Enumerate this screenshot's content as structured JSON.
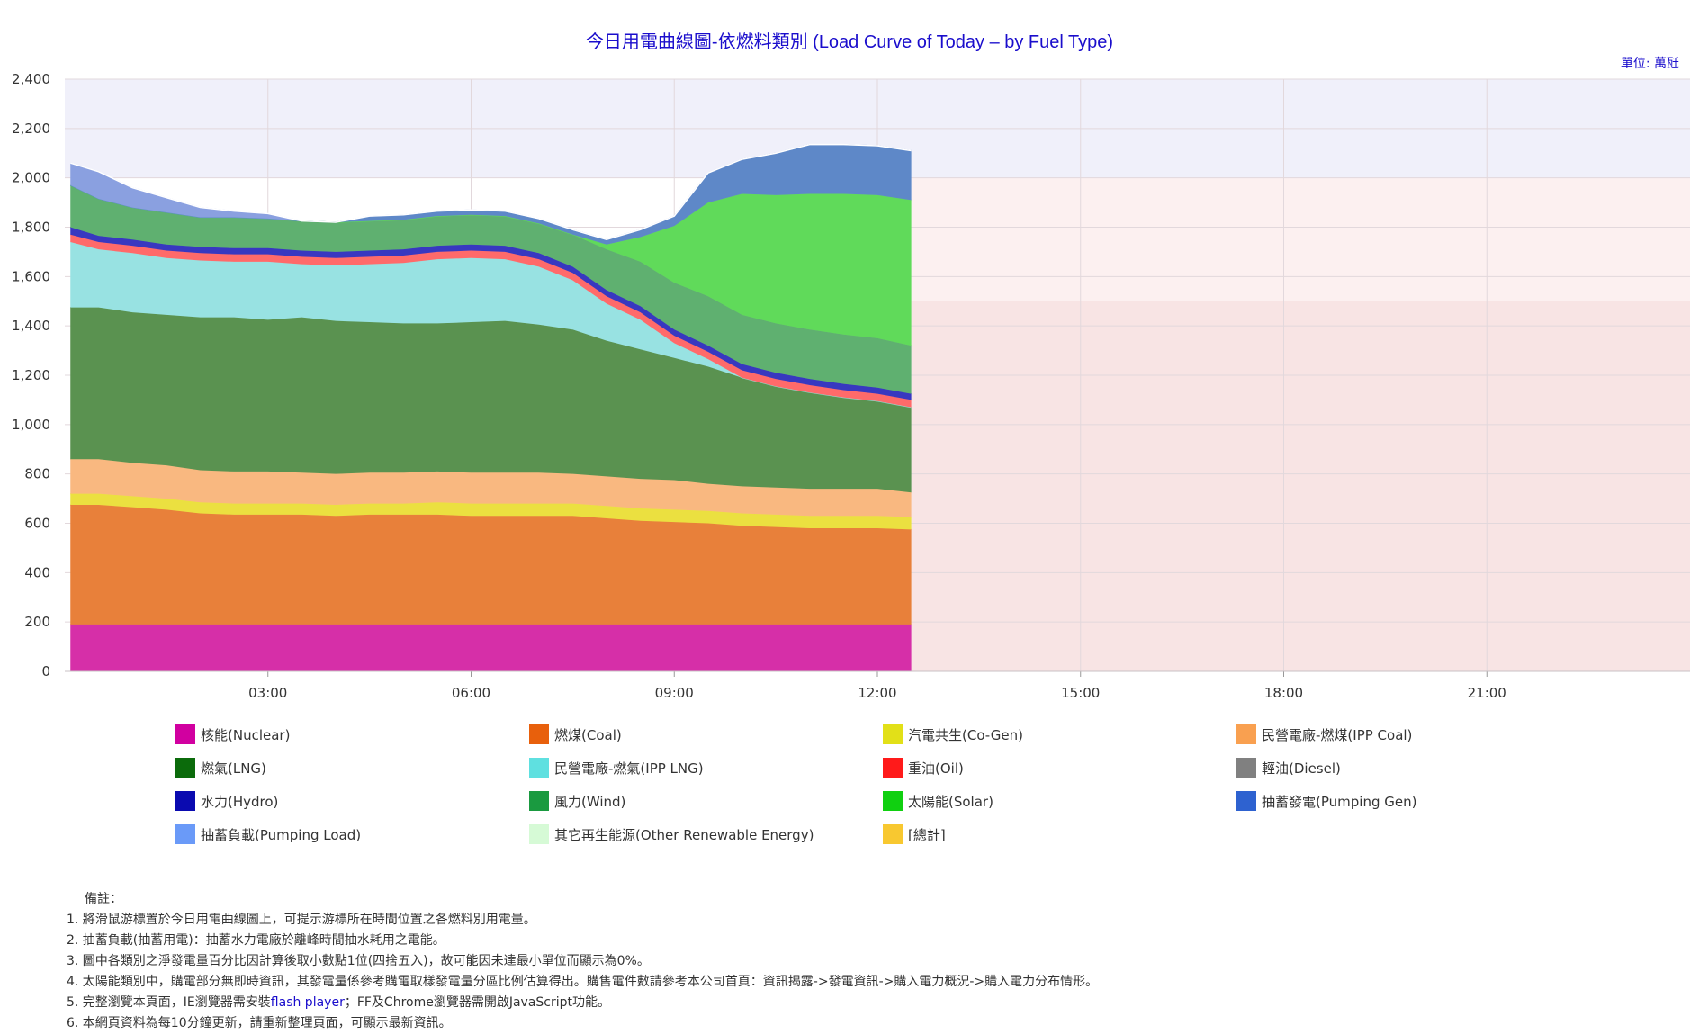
{
  "title": "今日用電曲線圖-依燃料類別 (Load Curve of Today – by Fuel Type)",
  "unit": "單位: 萬瓩",
  "legend": [
    {
      "label": "核能(Nuclear)",
      "color": "#d100a0"
    },
    {
      "label": "燃煤(Coal)",
      "color": "#e8600c"
    },
    {
      "label": "汽電共生(Co-Gen)",
      "color": "#e2e018"
    },
    {
      "label": "民營電廠-燃煤(IPP Coal)",
      "color": "#f9a050"
    },
    {
      "label": "燃氣(LNG)",
      "color": "#0b6b0b"
    },
    {
      "label": "民營電廠-燃氣(IPP LNG)",
      "color": "#5fe0e0"
    },
    {
      "label": "重油(Oil)",
      "color": "#ff1a1a"
    },
    {
      "label": "輕油(Diesel)",
      "color": "#808080"
    },
    {
      "label": "水力(Hydro)",
      "color": "#0a0ab0"
    },
    {
      "label": "風力(Wind)",
      "color": "#1a9a40"
    },
    {
      "label": "太陽能(Solar)",
      "color": "#10d010"
    },
    {
      "label": "抽蓄發電(Pumping Gen)",
      "color": "#2e62d0"
    },
    {
      "label": "抽蓄負載(Pumping Load)",
      "color": "#6a9af8"
    },
    {
      "label": "其它再生能源(Other Renewable Energy)",
      "color": "#d6fad6"
    },
    {
      "label": "[總計]",
      "color": "#f8c830"
    }
  ],
  "notes": {
    "heading": "備註：",
    "items": [
      "1. 將滑鼠游標置於今日用電曲線圖上，可提示游標所在時間位置之各燃料別用電量。",
      "2. 抽蓄負載(抽蓄用電)：抽蓄水力電廠於離峰時間抽水耗用之電能。",
      "3. 圖中各類別之淨發電量百分比因計算後取小數點1位(四捨五入)，故可能因未達最小單位而顯示為0%。",
      "4. 太陽能類別中，購電部分無即時資訊，其發電量係參考購電取樣發電量分區比例估算得出。購售電件數請參考本公司首頁：資訊揭露->發電資訊->購入電力概況->購入電力分布情形。"
    ],
    "item5_prefix": "5. 完整瀏覽本頁面，IE瀏覽器需安裝",
    "item5_link": "flash player",
    "item5_suffix": "；FF及Chrome瀏覽器需開啟JavaScript功能。",
    "item6": "6. 本網頁資料為每10分鐘更新，請重新整理頁面，可顯示最新資訊。"
  },
  "chart_data": {
    "type": "area",
    "stacked": true,
    "x_unit": "hours since 00:00",
    "x_range": [
      0,
      24
    ],
    "x_ticks": [
      "03:00",
      "06:00",
      "09:00",
      "12:00",
      "15:00",
      "18:00",
      "21:00"
    ],
    "y_range": [
      0,
      2400
    ],
    "y_ticks": [
      "0",
      "200",
      "400",
      "600",
      "800",
      "1,000",
      "1,200",
      "1,400",
      "1,600",
      "1,800",
      "2,000",
      "2,200",
      "2,400"
    ],
    "background_bands": [
      {
        "from": 0,
        "to": 1500,
        "color": "#f8e4e4"
      },
      {
        "from": 1500,
        "to": 2000,
        "color": "#fcf0f0"
      },
      {
        "from": 2000,
        "to": 2400,
        "color": "#f0f0fa"
      }
    ],
    "bands_start_x": 12.5,
    "x": [
      0.083,
      0.5,
      1.0,
      1.5,
      2.0,
      2.5,
      3.0,
      3.5,
      4.0,
      4.5,
      5.0,
      5.5,
      6.0,
      6.5,
      7.0,
      7.5,
      8.0,
      8.5,
      9.0,
      9.5,
      10.0,
      10.5,
      11.0,
      11.5,
      12.0,
      12.5
    ],
    "series": [
      {
        "name": "核能(Nuclear)",
        "color": "#d62fa8",
        "values": [
          190,
          190,
          190,
          190,
          190,
          190,
          190,
          190,
          190,
          190,
          190,
          190,
          190,
          190,
          190,
          190,
          190,
          190,
          190,
          190,
          190,
          190,
          190,
          190,
          190,
          190
        ]
      },
      {
        "name": "燃煤(Coal)",
        "color": "#e8803a",
        "values": [
          485,
          485,
          475,
          465,
          450,
          445,
          445,
          445,
          440,
          445,
          445,
          445,
          440,
          440,
          440,
          440,
          430,
          420,
          415,
          410,
          400,
          395,
          390,
          390,
          390,
          385
        ]
      },
      {
        "name": "汽電共生(Co-Gen)",
        "color": "#ebe040",
        "values": [
          45,
          45,
          45,
          45,
          45,
          45,
          45,
          45,
          45,
          45,
          45,
          50,
          50,
          50,
          50,
          50,
          50,
          50,
          50,
          50,
          50,
          50,
          50,
          50,
          50,
          50
        ]
      },
      {
        "name": "民營電廠-燃煤(IPP Coal)",
        "color": "#f9b880",
        "values": [
          140,
          140,
          135,
          135,
          130,
          130,
          130,
          125,
          125,
          125,
          125,
          125,
          125,
          125,
          125,
          120,
          120,
          120,
          120,
          110,
          110,
          110,
          110,
          110,
          110,
          100
        ]
      },
      {
        "name": "燃氣(LNG)",
        "color": "#5a9250",
        "values": [
          615,
          615,
          610,
          610,
          620,
          625,
          615,
          630,
          620,
          610,
          605,
          600,
          610,
          615,
          600,
          585,
          550,
          525,
          495,
          475,
          440,
          410,
          390,
          370,
          355,
          345
        ]
      },
      {
        "name": "民營電廠-燃氣(IPP LNG)",
        "color": "#98e2e2",
        "values": [
          265,
          235,
          240,
          230,
          230,
          225,
          235,
          215,
          225,
          235,
          245,
          260,
          260,
          250,
          235,
          200,
          150,
          120,
          60,
          30,
          0,
          0,
          0,
          0,
          0,
          0
        ]
      },
      {
        "name": "重油(Oil)",
        "color": "#ff6a6a",
        "values": [
          30,
          30,
          30,
          30,
          30,
          30,
          30,
          30,
          30,
          30,
          30,
          30,
          30,
          30,
          30,
          30,
          30,
          30,
          30,
          30,
          30,
          30,
          30,
          30,
          30,
          30
        ]
      },
      {
        "name": "水力(Hydro)",
        "color": "#3838c0",
        "values": [
          30,
          25,
          25,
          25,
          25,
          25,
          25,
          25,
          25,
          25,
          25,
          25,
          25,
          25,
          25,
          25,
          25,
          25,
          25,
          25,
          25,
          25,
          25,
          25,
          25,
          25
        ]
      },
      {
        "name": "風力(Wind)",
        "color": "#5fb070",
        "values": [
          170,
          150,
          130,
          130,
          120,
          125,
          120,
          120,
          120,
          120,
          120,
          120,
          120,
          120,
          120,
          130,
          165,
          180,
          190,
          200,
          200,
          200,
          200,
          200,
          200,
          195
        ]
      },
      {
        "name": "太陽能(Solar)",
        "color": "#60da5a",
        "values": [
          0,
          0,
          0,
          0,
          0,
          0,
          0,
          0,
          0,
          0,
          0,
          0,
          0,
          0,
          0,
          0,
          20,
          100,
          230,
          380,
          490,
          520,
          550,
          570,
          580,
          590
        ]
      },
      {
        "name": "抽蓄發電(Pumping Gen)",
        "color": "#5e88c8",
        "values": [
          0,
          0,
          0,
          0,
          0,
          0,
          0,
          0,
          0,
          20,
          20,
          20,
          20,
          20,
          20,
          20,
          20,
          30,
          40,
          120,
          140,
          170,
          200,
          200,
          200,
          200
        ]
      },
      {
        "name": "抽蓄負載(Pumping Load)",
        "color": "#8aa0e0",
        "values": [
          90,
          110,
          80,
          60,
          40,
          25,
          20,
          0,
          0,
          0,
          0,
          0,
          0,
          0,
          0,
          0,
          0,
          0,
          0,
          0,
          0,
          0,
          0,
          0,
          0,
          0
        ]
      }
    ]
  }
}
